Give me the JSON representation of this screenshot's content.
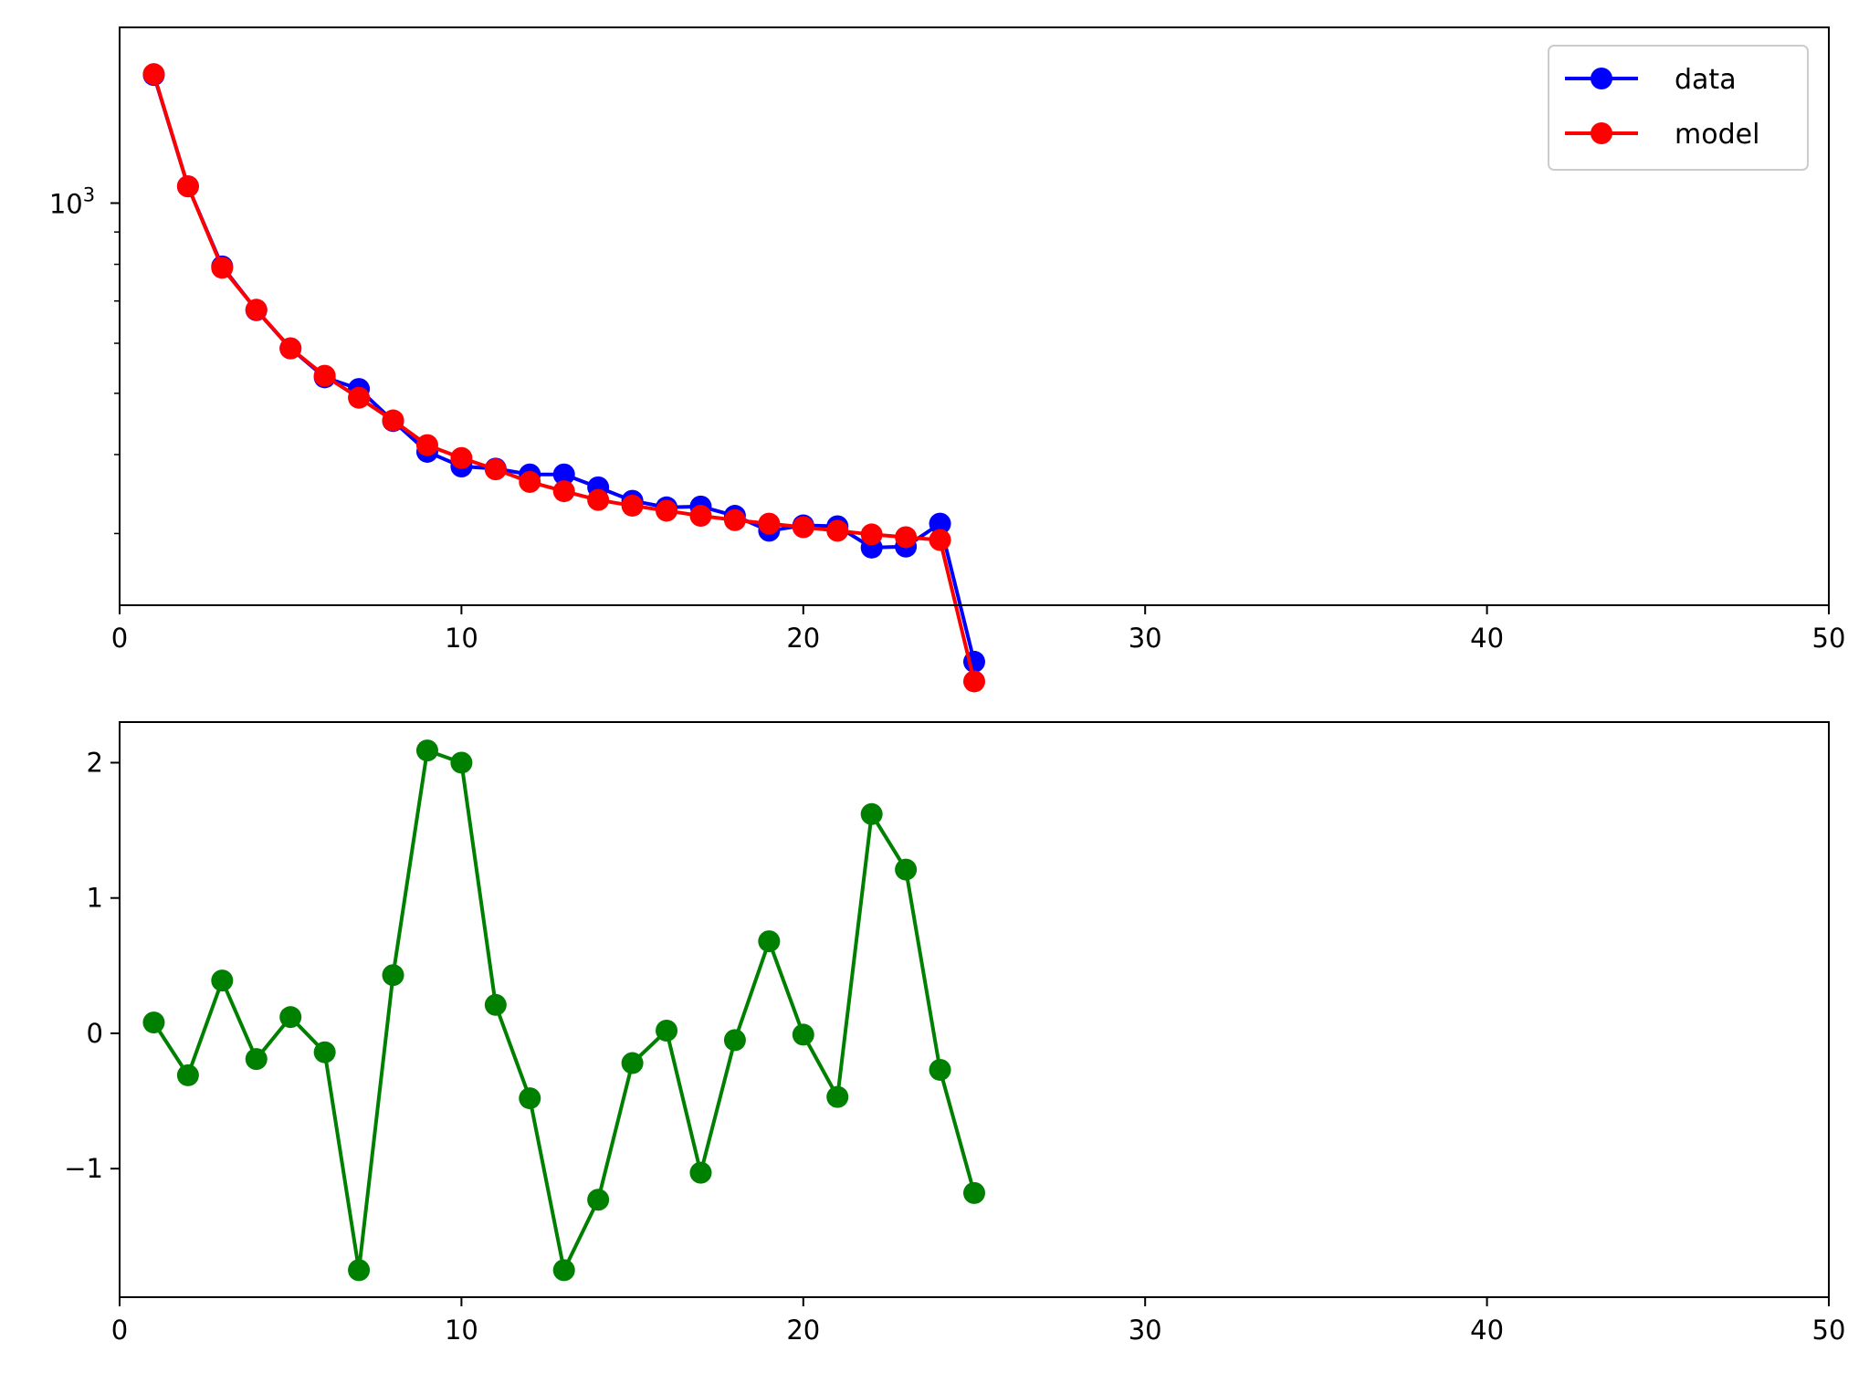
{
  "chart_data": [
    {
      "type": "line",
      "yscale": "log",
      "xlim": [
        0,
        50
      ],
      "ylim": [
        231,
        1897
      ],
      "x": [
        1,
        2,
        3,
        4,
        5,
        6,
        7,
        8,
        9,
        10,
        11,
        12,
        13,
        14,
        15,
        16,
        17,
        18,
        19,
        20,
        21,
        22,
        23,
        24,
        25
      ],
      "series": [
        {
          "name": "data",
          "color": "#0000ff",
          "marker": "circle",
          "values": [
            1595,
            1063,
            794,
            677,
            589,
            530,
            508,
            452,
            404,
            383,
            380,
            372,
            372,
            355,
            338,
            330,
            331,
            320,
            303,
            309,
            308,
            285,
            286,
            311,
            188
          ]
        },
        {
          "name": "model",
          "color": "#ff0000",
          "marker": "circle",
          "values": [
            1600,
            1063,
            790,
            678,
            589,
            533,
            492,
            453,
            414,
            395,
            379,
            362,
            350,
            339,
            332,
            326,
            320,
            315,
            311,
            307,
            303,
            299,
            296,
            293,
            175
          ]
        }
      ],
      "xticks": [
        0,
        10,
        20,
        30,
        40,
        50
      ],
      "xtick_labels": [
        "0",
        "10",
        "20",
        "30",
        "40",
        "50"
      ],
      "yticks": [
        1000
      ],
      "ytick_labels": [
        {
          "base": "10",
          "exp": "3"
        }
      ],
      "minor_yticks": [
        300,
        400,
        500,
        600,
        700,
        800,
        900
      ],
      "legend": {
        "position": "upper right",
        "entries": [
          "data",
          "model"
        ]
      },
      "grid": false,
      "title": "",
      "xlabel": "",
      "ylabel": ""
    },
    {
      "type": "line",
      "xlim": [
        0,
        50
      ],
      "ylim": [
        -1.95,
        2.3
      ],
      "x": [
        1,
        2,
        3,
        4,
        5,
        6,
        7,
        8,
        9,
        10,
        11,
        12,
        13,
        14,
        15,
        16,
        17,
        18,
        19,
        20,
        21,
        22,
        23,
        24,
        25
      ],
      "series": [
        {
          "color": "#008000",
          "marker": "circle",
          "values": [
            0.08,
            -0.31,
            0.39,
            -0.19,
            0.12,
            -0.14,
            -1.75,
            0.43,
            2.09,
            2.0,
            0.21,
            -0.48,
            -1.75,
            -1.23,
            -0.22,
            0.02,
            -1.03,
            -0.05,
            0.68,
            -0.01,
            -0.47,
            1.62,
            1.21,
            -0.27,
            -1.18
          ]
        }
      ],
      "xticks": [
        0,
        10,
        20,
        30,
        40,
        50
      ],
      "xtick_labels": [
        "0",
        "10",
        "20",
        "30",
        "40",
        "50"
      ],
      "yticks": [
        -1,
        0,
        1,
        2
      ],
      "ytick_labels": [
        "−1",
        "0",
        "1",
        "2"
      ],
      "grid": false,
      "title": "",
      "xlabel": "",
      "ylabel": ""
    }
  ]
}
